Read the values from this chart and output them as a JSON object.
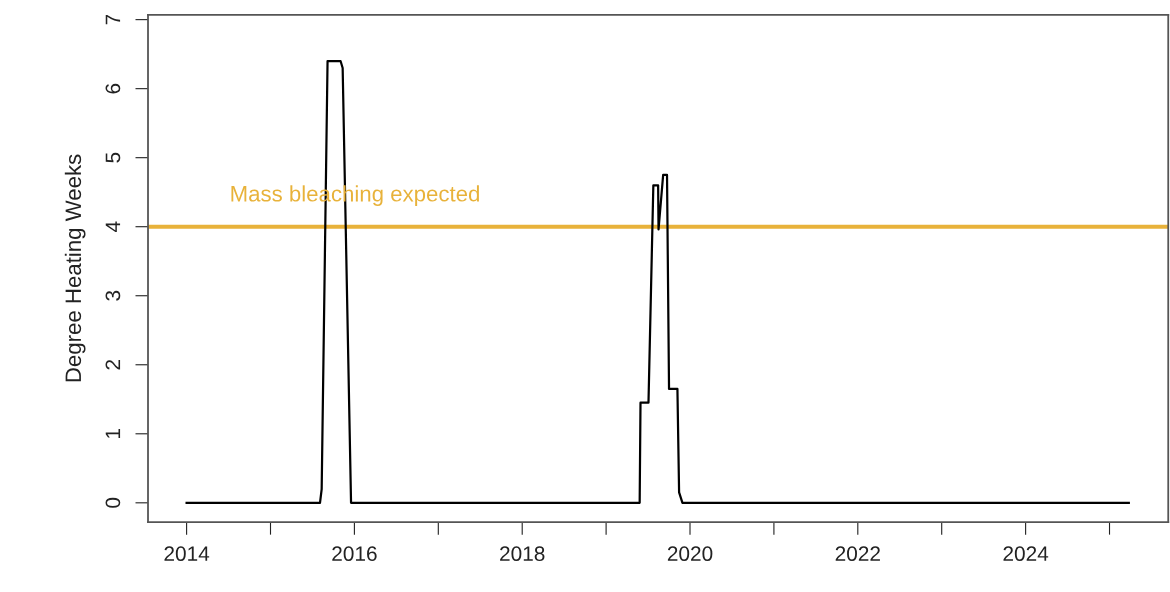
{
  "chart_data": {
    "type": "line",
    "ylabel": "Degree Heating Weeks",
    "x": [
      2014.0,
      2015.59,
      2015.61,
      2015.68,
      2015.835,
      2015.86,
      2015.96,
      2019.4,
      2019.41,
      2019.505,
      2019.563,
      2019.62,
      2019.625,
      2019.68,
      2019.726,
      2019.75,
      2019.85,
      2019.87,
      2019.91,
      2025.23
    ],
    "series": [
      {
        "color": "#000000",
        "values": [
          0,
          0,
          0.2,
          6.4,
          6.4,
          6.3,
          0,
          0,
          1.45,
          1.45,
          4.6,
          4.6,
          3.96,
          4.75,
          4.75,
          1.65,
          1.65,
          0.15,
          0,
          0
        ]
      }
    ],
    "xlim": [
      2013.54,
      2025.7
    ],
    "ylim": [
      -0.28,
      7.07
    ],
    "xticks": [
      2014,
      {
        "value": 2015,
        "label": null
      },
      2016,
      {
        "value": 2017,
        "label": null
      },
      2018,
      {
        "value": 2019,
        "label": null
      },
      2020,
      {
        "value": 2021,
        "label": null
      },
      2022,
      {
        "value": 2023,
        "label": null
      },
      2024,
      {
        "value": 2025,
        "label": null
      }
    ],
    "yticks": [
      0,
      1,
      2,
      3,
      4,
      5,
      6,
      7
    ],
    "ref_lines": [
      {
        "axis": "y",
        "value": 4,
        "label": "Mass bleaching expected",
        "color": "#e8b23a"
      }
    ],
    "grid": false,
    "legend": false,
    "marker": "none",
    "line_style": "solid"
  }
}
